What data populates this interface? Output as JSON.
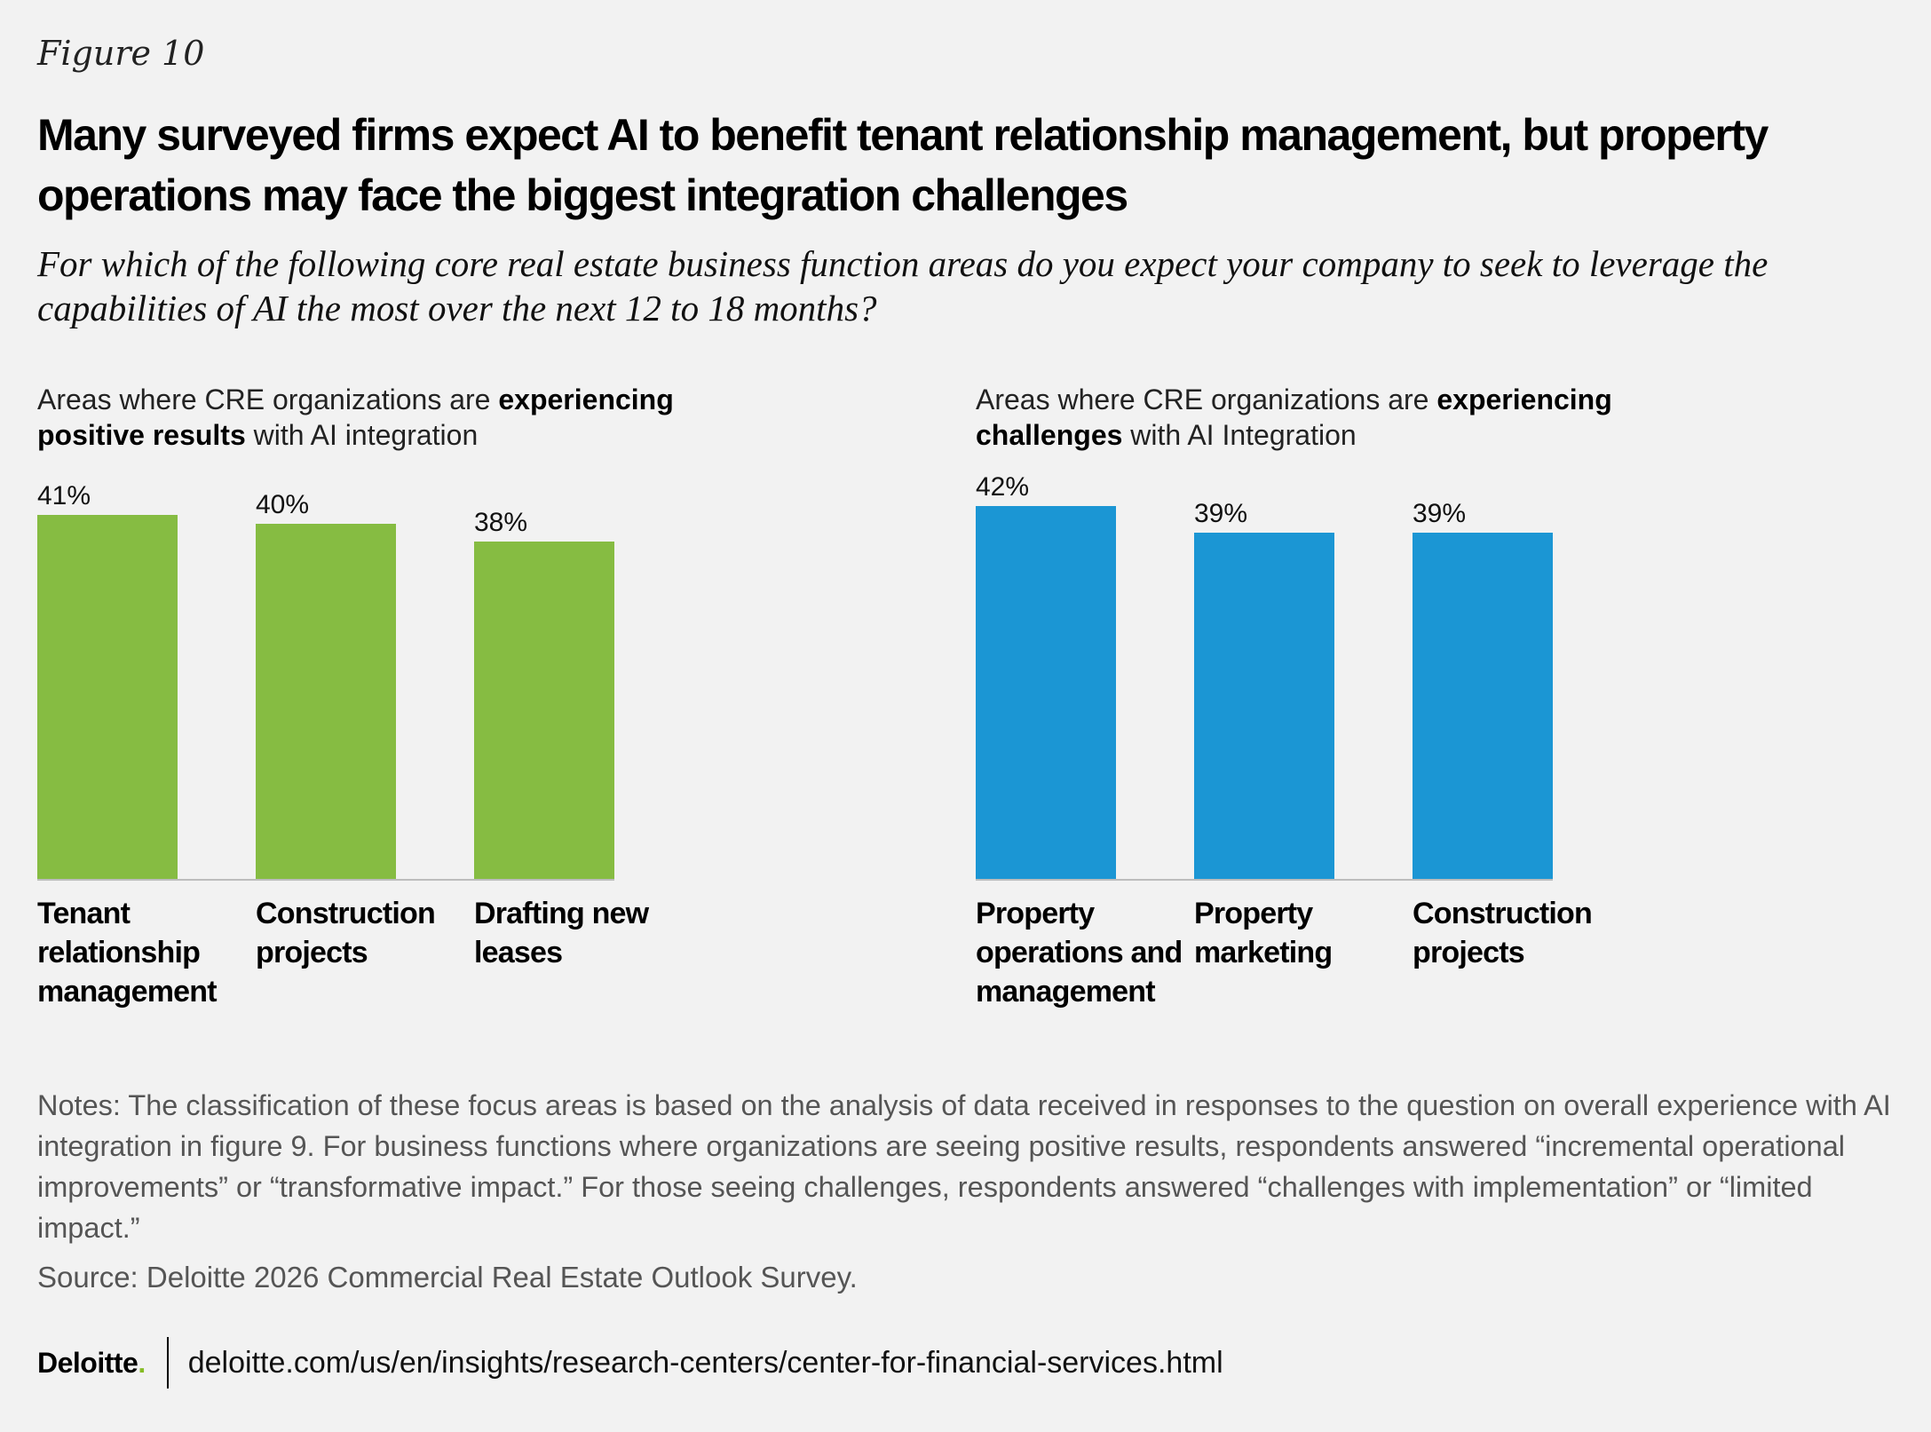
{
  "figure_label": "Figure 10",
  "title": "Many surveyed firms expect AI to benefit tenant relationship management, but property operations may face the biggest integration challenges",
  "question": "For which of the following core real estate business function areas do you expect your company to seek to leverage the capabilities of AI the most over the next 12 to 18 months?",
  "chart_data": [
    {
      "type": "bar",
      "subtitle_parts": [
        "Areas where CRE organizations are ",
        "experiencing positive results",
        " with AI integration"
      ],
      "categories": [
        [
          "Tenant",
          "relationship",
          "management"
        ],
        [
          "Construction",
          "projects"
        ],
        [
          "Drafting new",
          "leases"
        ]
      ],
      "values": [
        41,
        40,
        38
      ],
      "value_labels": [
        "41%",
        "40%",
        "38%"
      ],
      "color": "#86bc42",
      "ylim": [
        0,
        41
      ],
      "grid": false
    },
    {
      "type": "bar",
      "subtitle_parts": [
        "Areas where CRE organizations are ",
        "experiencing challenges",
        " with AI Integration"
      ],
      "categories": [
        [
          "Property",
          "operations and",
          "management"
        ],
        [
          "Property",
          "marketing"
        ],
        [
          "Construction",
          "projects"
        ]
      ],
      "values": [
        42,
        39,
        39
      ],
      "value_labels": [
        "42%",
        "39%",
        "39%"
      ],
      "color": "#1b96d4",
      "ylim": [
        0,
        41
      ],
      "grid": false
    }
  ],
  "notes": "Notes: The classification of these focus areas is based on the analysis of data received in responses to the question on overall experience with AI integration in figure 9. For business functions where organizations are seeing positive results, respondents answered “incremental operational improvements” or “transformative impact.” For those seeing challenges, respondents answered “challenges with implementation” or “limited impact.”",
  "source": "Source: Deloitte 2026 Commercial Real Estate Outlook Survey.",
  "footer": {
    "logo_text": "Deloitte",
    "logo_dot": ".",
    "url": "deloitte.com/us/en/insights/research-centers/center-for-financial-services.html"
  }
}
